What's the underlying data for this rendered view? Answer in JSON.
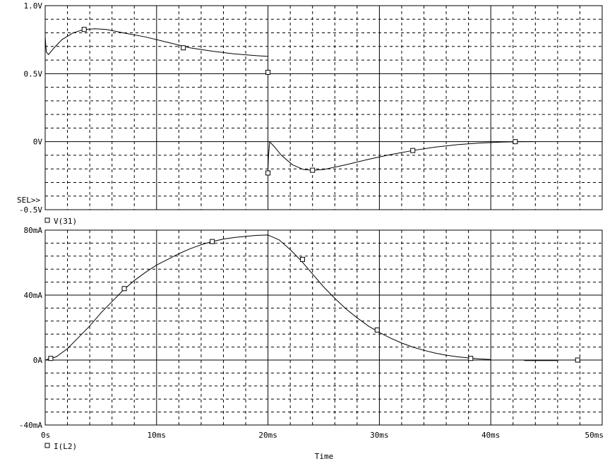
{
  "chart_data": [
    {
      "type": "line",
      "panel": "top",
      "xlabel": "",
      "ylabel": "",
      "xlim": [
        0,
        50
      ],
      "ylim": [
        -0.5,
        1.0
      ],
      "y_ticks": [
        {
          "value": 1.0,
          "label": "1.0V"
        },
        {
          "value": 0.5,
          "label": "0.5V"
        },
        {
          "value": 0.0,
          "label": "0V"
        },
        {
          "value": -0.5,
          "label": "-0.5V"
        }
      ],
      "selector_label": "SEL>>",
      "grid": true,
      "legend": "bottom-left",
      "series": [
        {
          "name": "V(31)",
          "segments": [
            [
              [
                0,
                0.77
              ],
              [
                0.1,
                0.66
              ],
              [
                0.3,
                0.64
              ],
              [
                0.8,
                0.69
              ],
              [
                1.5,
                0.75
              ],
              [
                2.5,
                0.8
              ],
              [
                3.5,
                0.825
              ],
              [
                4.5,
                0.83
              ],
              [
                5.5,
                0.825
              ],
              [
                7,
                0.8
              ],
              [
                9,
                0.77
              ],
              [
                11,
                0.73
              ],
              [
                13,
                0.69
              ],
              [
                15,
                0.665
              ],
              [
                17,
                0.645
              ],
              [
                19,
                0.632
              ],
              [
                20,
                0.627
              ]
            ],
            [
              [
                20,
                -0.2
              ],
              [
                20.05,
                -0.1
              ],
              [
                20.15,
                0.0
              ],
              [
                20.6,
                -0.04
              ],
              [
                21.2,
                -0.1
              ],
              [
                22.2,
                -0.17
              ],
              [
                23.2,
                -0.205
              ],
              [
                24,
                -0.21
              ],
              [
                25,
                -0.205
              ],
              [
                27,
                -0.17
              ],
              [
                29,
                -0.13
              ],
              [
                31,
                -0.095
              ],
              [
                33,
                -0.065
              ],
              [
                35,
                -0.04
              ],
              [
                37,
                -0.022
              ],
              [
                39,
                -0.01
              ],
              [
                41,
                -0.003
              ],
              [
                43,
                0.0
              ],
              [
                43.8,
                0.0
              ]
            ]
          ],
          "markers": [
            [
              3.5,
              0.825
            ],
            [
              12.4,
              0.69
            ],
            [
              20,
              0.51
            ],
            [
              20,
              -0.23
            ],
            [
              24,
              -0.21
            ],
            [
              33,
              -0.065
            ],
            [
              42.2,
              0.0
            ]
          ]
        }
      ]
    },
    {
      "type": "line",
      "panel": "bottom",
      "xlabel": "Time",
      "ylabel": "",
      "xlim": [
        0,
        50
      ],
      "ylim": [
        -40,
        80
      ],
      "y_ticks": [
        {
          "value": 80,
          "label": "80mA"
        },
        {
          "value": 40,
          "label": "40mA"
        },
        {
          "value": 0,
          "label": "0A"
        },
        {
          "value": -40,
          "label": "-40mA"
        }
      ],
      "x_ticks": [
        {
          "value": 0,
          "label": "0s"
        },
        {
          "value": 10,
          "label": "10ms"
        },
        {
          "value": 20,
          "label": "20ms"
        },
        {
          "value": 30,
          "label": "30ms"
        },
        {
          "value": 40,
          "label": "40ms"
        },
        {
          "value": 50,
          "label": "50ms"
        }
      ],
      "grid": true,
      "legend": "bottom-left",
      "series": [
        {
          "name": "I(L2)",
          "segments": [
            [
              [
                0,
                0
              ],
              [
                1,
                2
              ],
              [
                2,
                7
              ],
              [
                3,
                14
              ],
              [
                4,
                21
              ],
              [
                5,
                29
              ],
              [
                6,
                36
              ],
              [
                7,
                43
              ],
              [
                8,
                49
              ],
              [
                9,
                54
              ],
              [
                10,
                58.5
              ],
              [
                11,
                62
              ],
              [
                12,
                65.5
              ],
              [
                13,
                68.5
              ],
              [
                14,
                71
              ],
              [
                15,
                73
              ],
              [
                16,
                74.5
              ],
              [
                17,
                75.5
              ],
              [
                18,
                76.2
              ],
              [
                19,
                76.8
              ],
              [
                20,
                77
              ],
              [
                21,
                74
              ],
              [
                22,
                68
              ],
              [
                23,
                61
              ],
              [
                24,
                53
              ],
              [
                25,
                45
              ],
              [
                26,
                38
              ],
              [
                27,
                31.5
              ],
              [
                28,
                26
              ],
              [
                29,
                21
              ],
              [
                30,
                17
              ],
              [
                31,
                13.5
              ],
              [
                32,
                10.5
              ],
              [
                33,
                8
              ],
              [
                34,
                6
              ],
              [
                35,
                4.3
              ],
              [
                36,
                3
              ],
              [
                37,
                2
              ],
              [
                38,
                1.3
              ],
              [
                39,
                0.7
              ],
              [
                40,
                0.3
              ]
            ],
            [
              [
                43,
                -0.3
              ],
              [
                46,
                -0.3
              ]
            ]
          ],
          "markers": [
            [
              0.5,
              1
            ],
            [
              7.1,
              44
            ],
            [
              15,
              73
            ],
            [
              23.1,
              62
            ],
            [
              29.8,
              18.5
            ],
            [
              38.2,
              1
            ],
            [
              47.8,
              0
            ]
          ]
        }
      ]
    }
  ]
}
